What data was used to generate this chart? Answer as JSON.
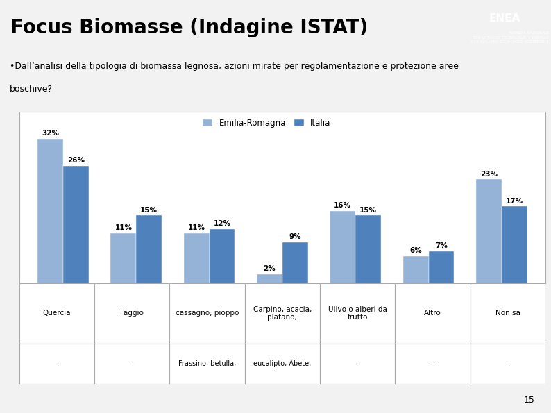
{
  "title": "Focus Biomasse (Indagine ISTAT)",
  "subtitle_line1": "•Dall’analisi della tipologia di biomassa legnosa, azioni mirate per regolamentazione e protezione aree",
  "subtitle_line2": "boschive?",
  "cat_row1": [
    "Quercia",
    "Faggio",
    "cassagno, pioppo",
    "Carpino, acacia,\nplatano,",
    "Ulivo o alberi da\nfrutto",
    "Altro",
    "Non sa"
  ],
  "cat_row2": [
    "-",
    "-",
    "Frassino, betulla,",
    "eucalipto, Abete,",
    "-",
    "-",
    "-"
  ],
  "emilia_values": [
    32,
    11,
    11,
    2,
    16,
    6,
    23
  ],
  "italia_values": [
    26,
    15,
    12,
    9,
    15,
    7,
    17
  ],
  "emilia_color": "#95B3D7",
  "italia_color": "#4F81BD",
  "legend_emilia": "Emilia-Romagna",
  "legend_italia": "Italia",
  "background_slide": "#F2F2F2",
  "chart_bg": "#FFFFFF",
  "header_bg_color": "#C0C0C0",
  "ylim": [
    0,
    38
  ],
  "page_number": "15"
}
